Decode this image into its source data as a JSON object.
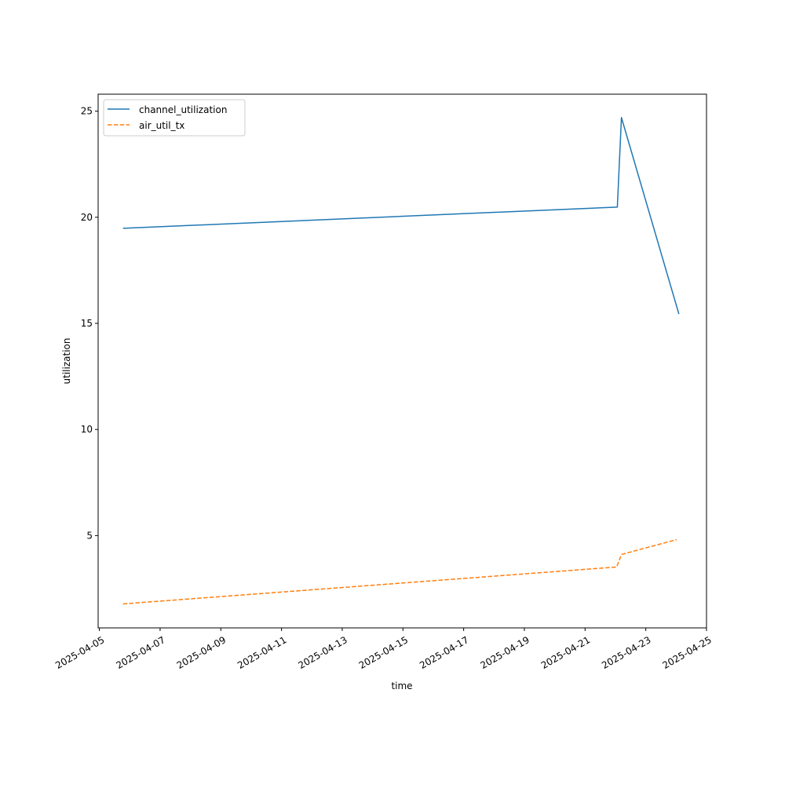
{
  "chart_data": {
    "type": "line",
    "title": "",
    "xlabel": "time",
    "ylabel": "utilization",
    "xlim": [
      "2025-04-04T23:00",
      "2025-04-25T00:00"
    ],
    "ylim": [
      0.65,
      25.8
    ],
    "x_ticks": [
      "2025-04-05",
      "2025-04-07",
      "2025-04-09",
      "2025-04-11",
      "2025-04-13",
      "2025-04-15",
      "2025-04-17",
      "2025-04-19",
      "2025-04-21",
      "2025-04-23",
      "2025-04-25"
    ],
    "y_ticks": [
      5,
      10,
      15,
      20,
      25
    ],
    "grid": false,
    "legend_position": "top-left",
    "series": [
      {
        "name": "channel_utilization",
        "color": "#1f77b4",
        "style": "solid",
        "x": [
          "2025-04-05T18:40",
          "2025-04-22T01:30",
          "2025-04-22T04:45",
          "2025-04-24T02:10"
        ],
        "y": [
          19.48,
          20.48,
          24.7,
          15.44
        ]
      },
      {
        "name": "air_util_tx",
        "color": "#ff7f0e",
        "style": "dashed",
        "x": [
          "2025-04-05T18:40",
          "2025-04-22T01:00",
          "2025-04-22T04:45",
          "2025-04-24T00:20"
        ],
        "y": [
          1.78,
          3.52,
          4.11,
          4.81
        ]
      }
    ]
  }
}
